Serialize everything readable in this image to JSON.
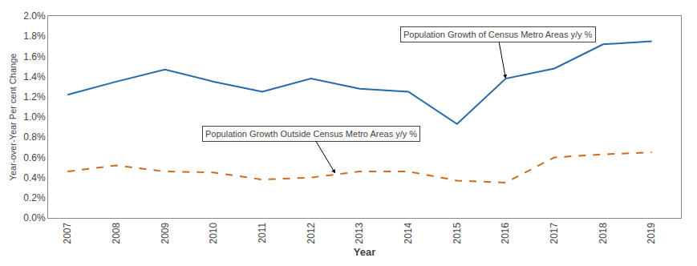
{
  "chart_data": {
    "type": "line",
    "x_title": "Year",
    "y_title": "Year-over-Year Per cent Change",
    "x": [
      2007,
      2008,
      2009,
      2010,
      2011,
      2012,
      2013,
      2014,
      2015,
      2016,
      2017,
      2018,
      2019
    ],
    "series": [
      {
        "color": "#2469AE",
        "line_style": "solid",
        "values": [
          0.0122,
          0.0135,
          0.0147,
          0.0135,
          0.0125,
          0.0138,
          0.0128,
          0.0125,
          0.0093,
          0.0138,
          0.0148,
          0.0172,
          0.0175
        ]
      },
      {
        "color": "#D2691E",
        "line_style": "dash",
        "values": [
          0.0046,
          0.0052,
          0.0046,
          0.0045,
          0.0038,
          0.004,
          0.0046,
          0.0046,
          0.0037,
          0.0035,
          0.006,
          0.0063,
          0.0065
        ]
      }
    ],
    "xlim": [
      2006.6,
      2019.6
    ],
    "xticks": [
      2007,
      2008,
      2009,
      2010,
      2011,
      2012,
      2013,
      2014,
      2015,
      2016,
      2017,
      2018,
      2019
    ],
    "ylim": [
      0.0,
      0.02
    ],
    "yticks": [
      {
        "value": 0,
        "label": "0.0%"
      },
      {
        "value": 0.002,
        "label": "0.2%"
      },
      {
        "value": 0.004,
        "label": "0.4%"
      },
      {
        "value": 0.006,
        "label": "0.6%"
      },
      {
        "value": 0.008,
        "label": "0.8%"
      },
      {
        "value": 0.01,
        "label": "1.0%"
      },
      {
        "value": 0.012,
        "label": "1.2%"
      },
      {
        "value": 0.014,
        "label": "1.4%"
      },
      {
        "value": 0.016,
        "label": "1.6%"
      },
      {
        "value": 0.018,
        "label": "1.8%"
      },
      {
        "value": 0.02,
        "label": "2.0%"
      }
    ],
    "grid": false,
    "annotations": [
      {
        "text": "Population Growth of Census Metro Areas y/y %",
        "x": 2016.0,
        "y": 0.0138
      },
      {
        "text": "Population Growth Outside Census Metro Areas y/y %",
        "x": 2012.5,
        "y": 0.0044
      }
    ]
  }
}
